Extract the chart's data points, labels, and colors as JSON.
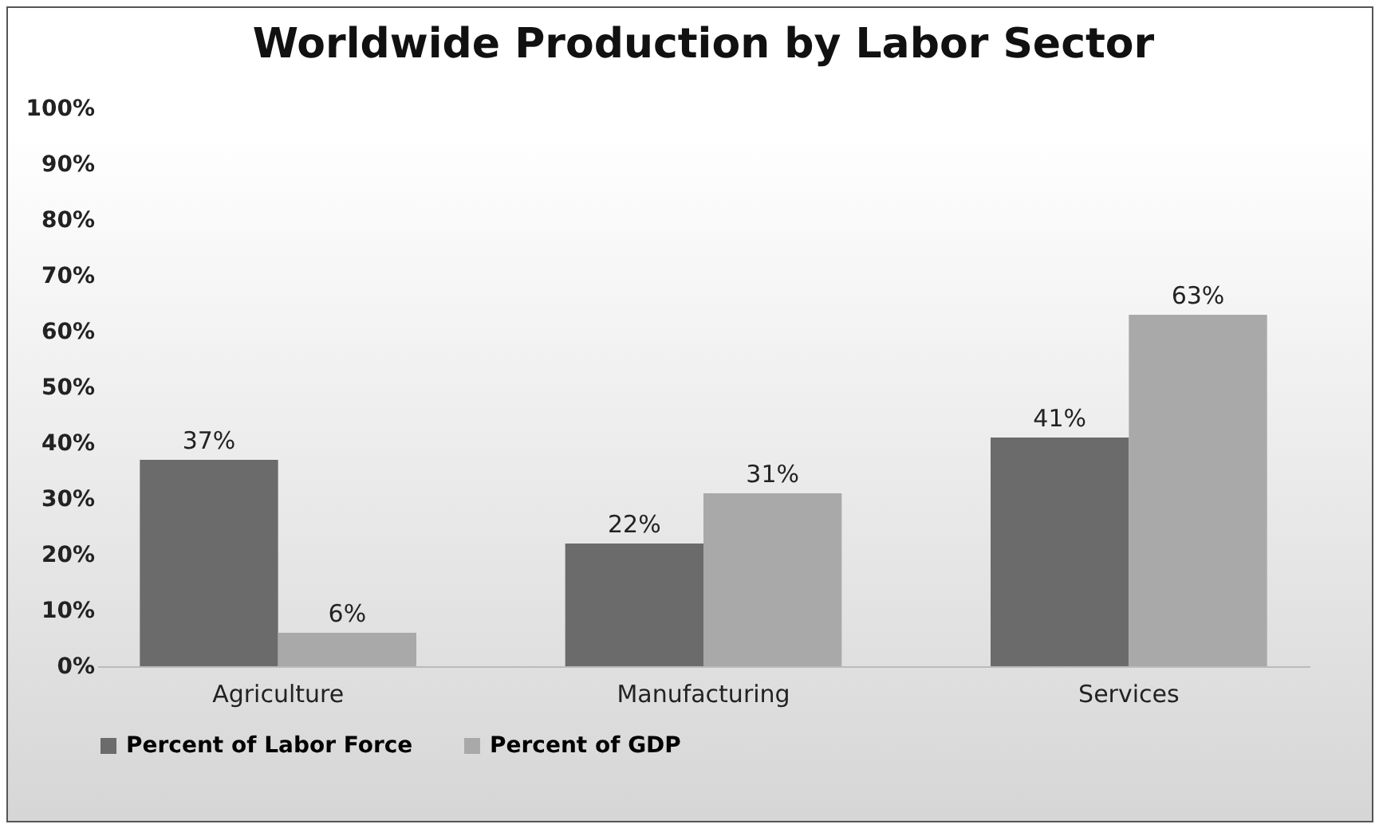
{
  "chart_data": {
    "type": "bar",
    "title": "Worldwide Production by Labor Sector",
    "categories": [
      "Agriculture",
      "Manufacturing",
      "Services"
    ],
    "series": [
      {
        "name": "Percent of Labor Force",
        "color": "#6b6b6b",
        "values": [
          37,
          22,
          41
        ],
        "value_labels": [
          "37%",
          "22%",
          "41%"
        ]
      },
      {
        "name": "Percent of GDP",
        "color": "#a9a9a9",
        "values": [
          6,
          31,
          63
        ],
        "value_labels": [
          "6%",
          "31%",
          "63%"
        ]
      }
    ],
    "ylim": [
      0,
      100
    ],
    "yticks": [
      {
        "value": 0,
        "label": "0%"
      },
      {
        "value": 10,
        "label": "10%"
      },
      {
        "value": 20,
        "label": "20%"
      },
      {
        "value": 30,
        "label": "30%"
      },
      {
        "value": 40,
        "label": "40%"
      },
      {
        "value": 50,
        "label": "50%"
      },
      {
        "value": 60,
        "label": "60%"
      },
      {
        "value": 70,
        "label": "70%"
      },
      {
        "value": 80,
        "label": "80%"
      },
      {
        "value": 90,
        "label": "90%"
      },
      {
        "value": 100,
        "label": "100%"
      }
    ],
    "grid": false,
    "legend": "bottom"
  }
}
